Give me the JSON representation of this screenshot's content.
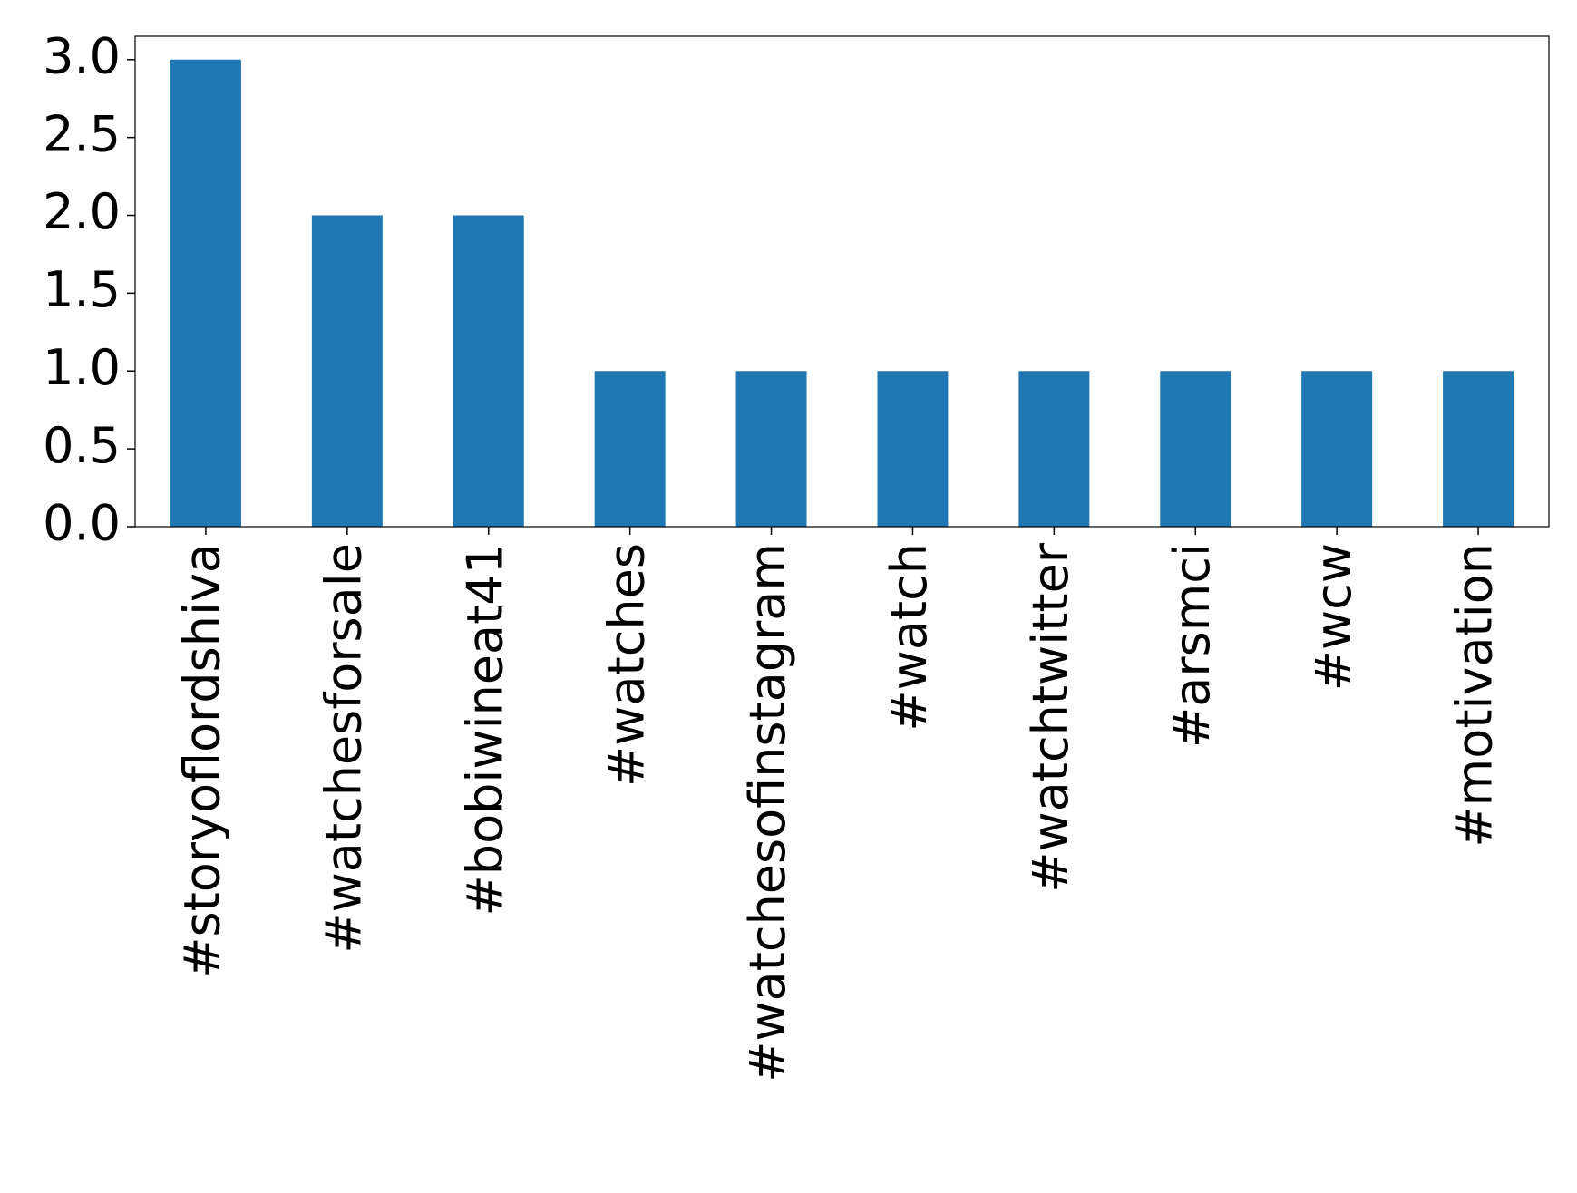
{
  "chart_data": {
    "type": "bar",
    "categories": [
      "#storyoflordshiva",
      "#watchesforsale",
      "#bobiwineat41",
      "#watches",
      "#watchesofinstagram",
      "#watch",
      "#watchtwitter",
      "#arsmci",
      "#wcw",
      "#motivation"
    ],
    "values": [
      3,
      2,
      2,
      1,
      1,
      1,
      1,
      1,
      1,
      1
    ],
    "color": "#1f77b4",
    "ylim": [
      0,
      3.15
    ],
    "yticks": [
      {
        "value": 0,
        "label": "0.0"
      },
      {
        "value": 0.5,
        "label": "0.5"
      },
      {
        "value": 1,
        "label": "1.0"
      },
      {
        "value": 1.5,
        "label": "1.5"
      },
      {
        "value": 2,
        "label": "2.0"
      },
      {
        "value": 2.5,
        "label": "2.5"
      },
      {
        "value": 3,
        "label": "3.0"
      }
    ],
    "grid": false
  }
}
